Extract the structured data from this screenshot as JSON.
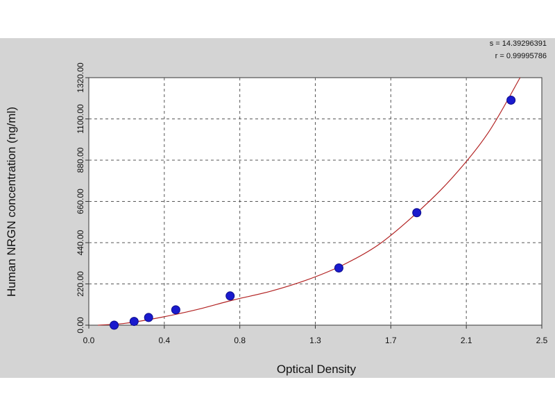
{
  "chart_data": {
    "type": "scatter",
    "xlabel": "Optical Density",
    "ylabel": "Human NRGN concentration (ng/ml)",
    "xlim": [
      0.0,
      2.5
    ],
    "ylim": [
      0.0,
      1320.0
    ],
    "x_ticks": [
      "0.0",
      "0.4",
      "0.8",
      "1.3",
      "1.7",
      "2.1",
      "2.5"
    ],
    "y_ticks": [
      "0.00",
      "220.00",
      "440.00",
      "660.00",
      "880.00",
      "1100.00",
      "1320.00"
    ],
    "grid": true,
    "points": [
      {
        "x": 0.14,
        "y": 0
      },
      {
        "x": 0.25,
        "y": 20
      },
      {
        "x": 0.33,
        "y": 41
      },
      {
        "x": 0.48,
        "y": 82
      },
      {
        "x": 0.78,
        "y": 156
      },
      {
        "x": 1.38,
        "y": 305
      },
      {
        "x": 1.81,
        "y": 600
      },
      {
        "x": 2.33,
        "y": 1200
      }
    ],
    "fit_curve": [
      [
        0.05,
        -8
      ],
      [
        0.2,
        10
      ],
      [
        0.4,
        42
      ],
      [
        0.6,
        84
      ],
      [
        0.8,
        135
      ],
      [
        1.0,
        180
      ],
      [
        1.2,
        240
      ],
      [
        1.4,
        320
      ],
      [
        1.6,
        430
      ],
      [
        1.8,
        590
      ],
      [
        2.0,
        780
      ],
      [
        2.2,
        1020
      ],
      [
        2.38,
        1320
      ]
    ],
    "stats": {
      "s": "s = 14.39296391",
      "r": "r = 0.99995786"
    },
    "colors": {
      "panel": "#d4d4d4",
      "plot_bg": "#ffffff",
      "curve": "#b22222",
      "marker": "#1a1acd",
      "grid": "#555555"
    }
  }
}
